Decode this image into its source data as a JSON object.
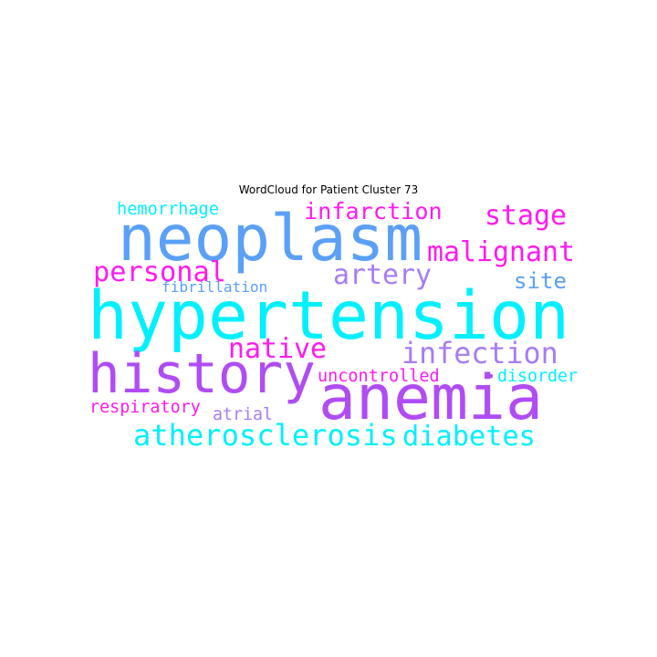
{
  "title": "WordCloud for Patient Cluster 73",
  "palette": {
    "cyan": "#00f0ff",
    "blue": "#5aa0f8",
    "violet": "#b04cf5",
    "magenta": "#ff1af0",
    "purple": "#a77cf4"
  },
  "words": [
    {
      "text": "hypertension",
      "color": "#00f0ff"
    },
    {
      "text": "neoplasm",
      "color": "#5aa0f8"
    },
    {
      "text": "history",
      "color": "#b04cf5"
    },
    {
      "text": "anemia",
      "color": "#b04cf5"
    },
    {
      "text": "malignant",
      "color": "#ff1af0"
    },
    {
      "text": "infection",
      "color": "#a77cf4"
    },
    {
      "text": "atherosclerosis",
      "color": "#00f0ff"
    },
    {
      "text": "diabetes",
      "color": "#00f0ff"
    },
    {
      "text": "personal",
      "color": "#ff1af0"
    },
    {
      "text": "artery",
      "color": "#a77cf4"
    },
    {
      "text": "infarction",
      "color": "#ff1af0"
    },
    {
      "text": "stage",
      "color": "#ff1af0"
    },
    {
      "text": "native",
      "color": "#ff1af0"
    },
    {
      "text": "hemorrhage",
      "color": "#00f0ff"
    },
    {
      "text": "site",
      "color": "#5aa0f8"
    },
    {
      "text": "uncontrolled",
      "color": "#ff1af0"
    },
    {
      "text": "disorder",
      "color": "#00f0ff"
    },
    {
      "text": "respiratory",
      "color": "#ff1af0"
    },
    {
      "text": "atrial",
      "color": "#a77cf4"
    },
    {
      "text": "fibrillation",
      "color": "#5aa0f8"
    },
    {
      "text": "•",
      "color": "#b04cf5"
    }
  ]
}
